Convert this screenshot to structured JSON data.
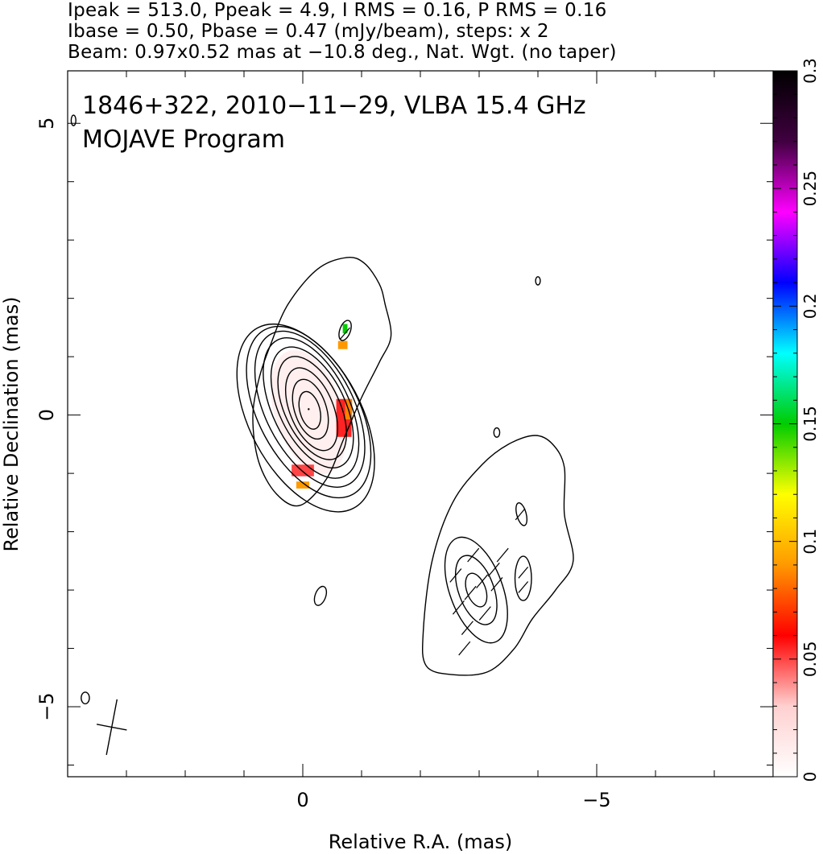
{
  "header": {
    "line1": "Ipeak = 513.0, Ppeak = 4.9, I RMS = 0.16, P RMS = 0.16",
    "line2": "Ibase = 0.50, Pbase = 0.47 (mJy/beam), steps: x 2",
    "line3": "Beam: 0.97x0.52 mas at −10.8 deg., Nat. Wgt. (no taper)"
  },
  "chart_data": {
    "type": "heatmap",
    "title": "1846+322, 2010−11−29, VLBA 15.4 GHz",
    "subtitle": "MOJAVE Program",
    "xlabel": "Relative R.A. (mas)",
    "ylabel": "Relative Declination (mas)",
    "xlim": [
      4,
      -8
    ],
    "ylim": [
      -6.2,
      5.9
    ],
    "x_inverted": true,
    "x_ticks": [
      0,
      -5
    ],
    "y_ticks": [
      5,
      0,
      -5
    ],
    "x_tick_labels": [
      "0",
      "−5"
    ],
    "y_tick_labels": [
      "5",
      "0",
      "−5"
    ],
    "x_minor_step": 1,
    "y_minor_step": 1,
    "grid": false,
    "contour_base_mJy_per_beam": 0.5,
    "contour_step_factor": 2,
    "colorbar": {
      "min": 0,
      "max": 0.3,
      "ticks": [
        0,
        0.05,
        0.1,
        0.15,
        0.2,
        0.25,
        0.3
      ],
      "tick_labels": [
        "0",
        "0.05",
        "0.1",
        "0.15",
        "0.2",
        "0.25",
        "0.3"
      ],
      "colors": [
        "#ffffff",
        "#ffd0d0",
        "#ff0000",
        "#ff9900",
        "#ffff00",
        "#00cc00",
        "#00ffff",
        "#0000ff",
        "#ff00ff",
        "#400040",
        "#000000"
      ]
    },
    "core": {
      "ra": -0.1,
      "dec": 0.1,
      "peak_mJy_per_beam": 513.0
    },
    "core_contours": [
      {
        "center": [
          -0.05,
          -0.05
        ],
        "a": 0.95,
        "b": 1.75,
        "angle": -28
      },
      {
        "center": [
          -0.1,
          0.05
        ],
        "a": 0.85,
        "b": 1.6,
        "angle": -28
      },
      {
        "center": [
          -0.12,
          0.1
        ],
        "a": 0.75,
        "b": 1.45,
        "angle": -27
      },
      {
        "center": [
          -0.14,
          0.12
        ],
        "a": 0.65,
        "b": 1.3,
        "angle": -26
      },
      {
        "center": [
          -0.16,
          0.13
        ],
        "a": 0.56,
        "b": 1.12,
        "angle": -26
      },
      {
        "center": [
          -0.16,
          0.12
        ],
        "a": 0.47,
        "b": 0.95,
        "angle": -25
      },
      {
        "center": [
          -0.15,
          0.1
        ],
        "a": 0.37,
        "b": 0.75,
        "angle": -22
      },
      {
        "center": [
          -0.13,
          0.1
        ],
        "a": 0.27,
        "b": 0.53,
        "angle": -18
      },
      {
        "center": [
          -0.12,
          0.08
        ],
        "a": 0.17,
        "b": 0.33,
        "angle": -15
      }
    ],
    "outer_core_contour": [
      [
        -0.25,
        2.5
      ],
      [
        -0.75,
        2.7
      ],
      [
        -1.05,
        2.6
      ],
      [
        -1.3,
        2.25
      ],
      [
        -1.4,
        1.9
      ],
      [
        -1.5,
        1.35
      ],
      [
        -1.3,
        0.9
      ],
      [
        -1.0,
        0.3
      ],
      [
        -0.7,
        -0.4
      ],
      [
        -0.4,
        -1.1
      ],
      [
        0.05,
        -1.55
      ],
      [
        0.45,
        -1.35
      ],
      [
        0.75,
        -0.8
      ],
      [
        0.85,
        -0.05
      ],
      [
        0.75,
        0.6
      ],
      [
        0.55,
        1.2
      ],
      [
        0.25,
        1.9
      ],
      [
        -0.25,
        2.5
      ]
    ],
    "jet_contour": [
      [
        -3.95,
        -0.35
      ],
      [
        -4.25,
        -0.5
      ],
      [
        -4.45,
        -0.9
      ],
      [
        -4.45,
        -1.7
      ],
      [
        -4.6,
        -2.5
      ],
      [
        -4.3,
        -3.0
      ],
      [
        -3.9,
        -3.5
      ],
      [
        -3.6,
        -4.0
      ],
      [
        -3.15,
        -4.4
      ],
      [
        -2.55,
        -4.45
      ],
      [
        -2.1,
        -4.3
      ],
      [
        -2.05,
        -3.7
      ],
      [
        -2.2,
        -2.5
      ],
      [
        -2.55,
        -1.5
      ],
      [
        -3.05,
        -0.85
      ],
      [
        -3.5,
        -0.5
      ],
      [
        -3.95,
        -0.35
      ]
    ],
    "jet_knots": [
      {
        "center": [
          -2.95,
          -3.0
        ],
        "a": 0.45,
        "b": 0.95,
        "angle": -20
      },
      {
        "center": [
          -2.95,
          -3.0
        ],
        "a": 0.3,
        "b": 0.62,
        "angle": -20
      },
      {
        "center": [
          -2.95,
          -3.0
        ],
        "a": 0.16,
        "b": 0.3,
        "angle": -20
      }
    ],
    "small_contours": [
      {
        "center": [
          -0.72,
          1.45
        ],
        "a": 0.09,
        "b": 0.18,
        "angle": 20
      },
      {
        "center": [
          -3.72,
          -1.7
        ],
        "a": 0.08,
        "b": 0.2,
        "angle": -15
      },
      {
        "center": [
          -3.75,
          -2.8
        ],
        "a": 0.14,
        "b": 0.38,
        "angle": 0
      },
      {
        "center": [
          -0.3,
          -3.1
        ],
        "a": 0.09,
        "b": 0.17,
        "angle": 20
      },
      {
        "center": [
          -3.3,
          -0.3
        ],
        "a": 0.05,
        "b": 0.08,
        "angle": 0
      },
      {
        "center": [
          -4.0,
          2.3
        ],
        "a": 0.04,
        "b": 0.07,
        "angle": 0
      },
      {
        "center": [
          3.9,
          5.05
        ],
        "a": 0.04,
        "b": 0.09,
        "angle": 0
      },
      {
        "center": [
          3.7,
          -4.85
        ],
        "a": 0.07,
        "b": 0.1,
        "angle": 0
      }
    ],
    "polarized_pixels": [
      {
        "ra": -0.1,
        "dec": 0.05,
        "w": 1.15,
        "h": 2.2,
        "value": 0.01,
        "shape": "ellipse"
      },
      {
        "ra": 0.0,
        "dec": -0.95,
        "w": 0.38,
        "h": 0.2,
        "value": 0.05
      },
      {
        "ra": 0.0,
        "dec": -1.2,
        "w": 0.22,
        "h": 0.12,
        "value": 0.09
      },
      {
        "ra": -0.7,
        "dec": -0.05,
        "w": 0.26,
        "h": 0.65,
        "value": 0.055
      },
      {
        "ra": -0.78,
        "dec": 0.1,
        "w": 0.12,
        "h": 0.35,
        "value": 0.085
      },
      {
        "ra": -0.68,
        "dec": 1.2,
        "w": 0.16,
        "h": 0.14,
        "value": 0.09
      },
      {
        "ra": -0.72,
        "dec": 1.48,
        "w": 0.08,
        "h": 0.16,
        "value": 0.15
      }
    ],
    "evpa_ticks": [
      {
        "ra": -0.72,
        "dec": 1.4,
        "length": 0.25,
        "angle": 40
      },
      {
        "ra": -3.4,
        "dec": -2.4,
        "length": 0.3,
        "angle": 40
      },
      {
        "ra": -3.25,
        "dec": -2.65,
        "length": 0.3,
        "angle": 40
      },
      {
        "ra": -3.05,
        "dec": -2.85,
        "length": 0.3,
        "angle": 40
      },
      {
        "ra": -2.85,
        "dec": -3.05,
        "length": 0.3,
        "angle": 40
      },
      {
        "ra": -2.65,
        "dec": -3.3,
        "length": 0.3,
        "angle": 40
      },
      {
        "ra": -3.1,
        "dec": -3.4,
        "length": 0.3,
        "angle": 40
      },
      {
        "ra": -2.8,
        "dec": -3.65,
        "length": 0.3,
        "angle": 40
      },
      {
        "ra": -3.3,
        "dec": -2.9,
        "length": 0.3,
        "angle": 40
      },
      {
        "ra": -2.6,
        "dec": -2.75,
        "length": 0.3,
        "angle": 40
      },
      {
        "ra": -2.9,
        "dec": -2.4,
        "length": 0.3,
        "angle": 40
      },
      {
        "ra": -2.75,
        "dec": -4.0,
        "length": 0.3,
        "angle": 40
      },
      {
        "ra": -3.7,
        "dec": -1.7,
        "length": 0.25,
        "angle": 40
      },
      {
        "ra": -3.75,
        "dec": -2.7,
        "length": 0.25,
        "angle": 40
      },
      {
        "ra": -3.75,
        "dec": -2.95,
        "length": 0.25,
        "angle": 40
      }
    ],
    "beam": {
      "ra": 3.25,
      "dec": -5.35,
      "major_mas": 0.97,
      "minor_mas": 0.52,
      "pa_deg": -10.8
    }
  }
}
